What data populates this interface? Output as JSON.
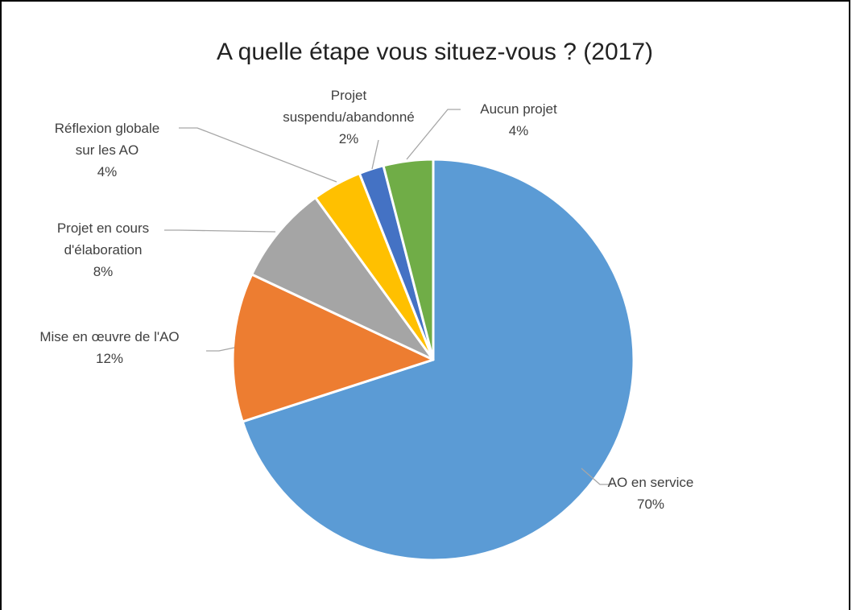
{
  "chart_data": {
    "type": "pie",
    "title": "A quelle étape vous situez-vous ? (2017)",
    "categories": [
      "AO en service",
      "Mise en œuvre de l'AO",
      "Projet en cours d'élaboration",
      "Réflexion globale sur les AO",
      "Projet suspendu/abandonné",
      "Aucun projet"
    ],
    "values": [
      70,
      12,
      8,
      4,
      2,
      4
    ],
    "value_labels": [
      "70%",
      "12%",
      "8%",
      "4%",
      "2%",
      "4%"
    ],
    "colors": [
      "#5b9bd5",
      "#ed7d31",
      "#a5a5a5",
      "#ffc000",
      "#4472c4",
      "#70ad47"
    ]
  }
}
